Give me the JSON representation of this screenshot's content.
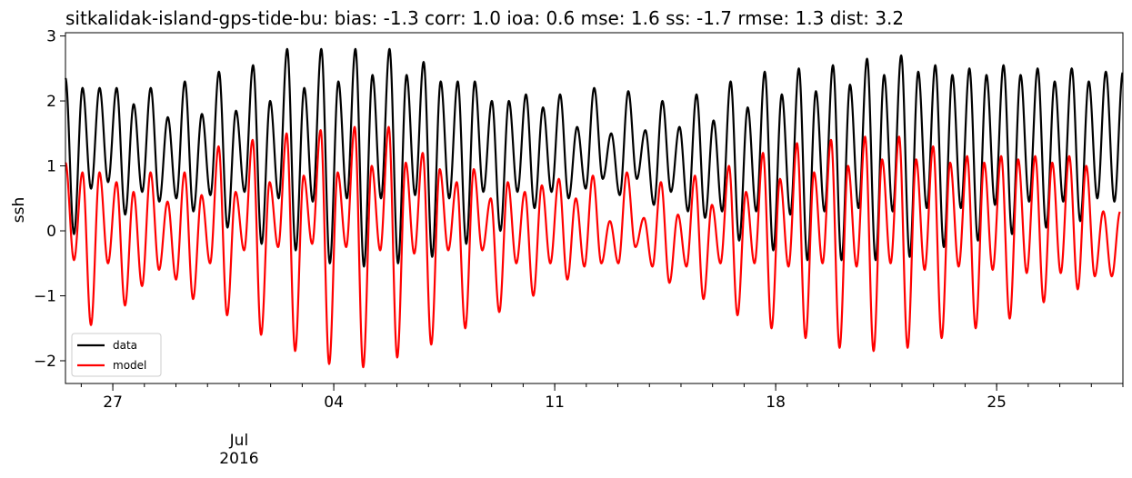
{
  "chart_data": {
    "type": "line",
    "title": "sitkalidak-island-gps-tide-bu: bias: -1.3  corr: 1.0  ioa: 0.6  mse: 1.6  ss: -1.7  rmse: 1.3  dist: 3.2",
    "xlabel": "",
    "ylabel": "ssh",
    "ylim": [
      -2.35,
      3.05
    ],
    "xlim": [
      "2016-06-25T12:00",
      "2016-07-29T00:00"
    ],
    "y_ticks": [
      -2,
      -1,
      0,
      1,
      2,
      3
    ],
    "y_tick_labels": [
      "−2",
      "−1",
      "0",
      "1",
      "2",
      "3"
    ],
    "x_major_ticks": [
      {
        "date": "2016-06-27",
        "label": "27"
      },
      {
        "date": "2016-07-04",
        "label": "04"
      },
      {
        "date": "2016-07-11",
        "label": "11"
      },
      {
        "date": "2016-07-18",
        "label": "18"
      },
      {
        "date": "2016-07-25",
        "label": "25"
      }
    ],
    "x_secondary_label": {
      "date": "2016-07-01",
      "lines": [
        "Jul",
        "2016"
      ]
    },
    "grid": false,
    "legend_position": "lower-left",
    "series": [
      {
        "name": "data",
        "color": "#000000",
        "start": "2016-06-25T12:00",
        "end": "2016-07-29T00:00",
        "highs": [
          2.35,
          2.2,
          2.2,
          2.2,
          1.95,
          2.2,
          1.75,
          2.3,
          1.8,
          2.45,
          1.85,
          2.55,
          2.0,
          2.8,
          2.2,
          2.8,
          2.3,
          2.8,
          2.4,
          2.8,
          2.4,
          2.6,
          2.3,
          2.3,
          2.3,
          2.0,
          2.0,
          2.1,
          1.9,
          2.1,
          1.6,
          2.2,
          1.5,
          2.15,
          1.55,
          2.0,
          1.6,
          2.1,
          1.7,
          2.3,
          1.9,
          2.45,
          2.1,
          2.5,
          2.15,
          2.55,
          2.25,
          2.65,
          2.4,
          2.7,
          2.45,
          2.55,
          2.4,
          2.5,
          2.4,
          2.55,
          2.4,
          2.5,
          2.3,
          2.5,
          2.3,
          2.45
        ],
        "lows": [
          -0.05,
          0.65,
          0.75,
          0.25,
          0.6,
          0.45,
          0.5,
          0.3,
          0.55,
          0.05,
          0.6,
          -0.2,
          0.5,
          -0.3,
          0.45,
          -0.5,
          0.5,
          -0.55,
          0.5,
          -0.5,
          0.55,
          -0.4,
          0.5,
          -0.2,
          0.6,
          0.0,
          0.6,
          0.35,
          0.6,
          0.5,
          0.65,
          0.8,
          0.55,
          0.8,
          0.4,
          0.6,
          0.3,
          0.2,
          0.3,
          -0.15,
          0.3,
          -0.3,
          0.25,
          -0.45,
          0.3,
          -0.45,
          0.35,
          -0.45,
          0.3,
          -0.4,
          0.35,
          -0.25,
          0.35,
          -0.15,
          0.4,
          -0.05,
          0.45,
          0.05,
          0.45,
          0.15,
          0.5,
          0.45
        ]
      },
      {
        "name": "model",
        "color": "#ff0000",
        "start": "2016-06-25T12:00",
        "end": "2016-07-28T22:00",
        "highs": [
          1.05,
          0.9,
          0.9,
          0.75,
          0.6,
          0.9,
          0.45,
          0.9,
          0.55,
          1.3,
          0.6,
          1.4,
          0.75,
          1.5,
          0.85,
          1.55,
          0.9,
          1.6,
          1.0,
          1.6,
          1.05,
          1.2,
          0.95,
          0.75,
          0.95,
          0.5,
          0.75,
          0.6,
          0.7,
          0.8,
          0.5,
          0.85,
          0.15,
          0.9,
          0.2,
          0.75,
          0.25,
          0.85,
          0.4,
          1.0,
          0.6,
          1.2,
          0.8,
          1.35,
          0.9,
          1.4,
          1.0,
          1.45,
          1.1,
          1.45,
          1.1,
          1.3,
          1.05,
          1.15,
          1.05,
          1.15,
          1.1,
          1.15,
          1.05,
          1.15,
          1.0,
          0.3
        ],
        "lows": [
          -0.45,
          -1.45,
          -0.5,
          -1.15,
          -0.85,
          -0.6,
          -0.75,
          -1.05,
          -0.5,
          -1.3,
          -0.3,
          -1.6,
          -0.25,
          -1.85,
          -0.2,
          -2.05,
          -0.25,
          -2.1,
          -0.3,
          -1.95,
          -0.35,
          -1.75,
          -0.3,
          -1.5,
          -0.3,
          -1.25,
          -0.5,
          -1.0,
          -0.5,
          -0.75,
          -0.55,
          -0.5,
          -0.5,
          -0.25,
          -0.55,
          -0.8,
          -0.55,
          -1.05,
          -0.5,
          -1.3,
          -0.5,
          -1.5,
          -0.55,
          -1.65,
          -0.5,
          -1.8,
          -0.55,
          -1.85,
          -0.5,
          -1.8,
          -0.6,
          -1.65,
          -0.55,
          -1.5,
          -0.6,
          -1.35,
          -0.65,
          -1.1,
          -0.65,
          -0.9,
          -0.7,
          -0.7
        ]
      }
    ]
  }
}
